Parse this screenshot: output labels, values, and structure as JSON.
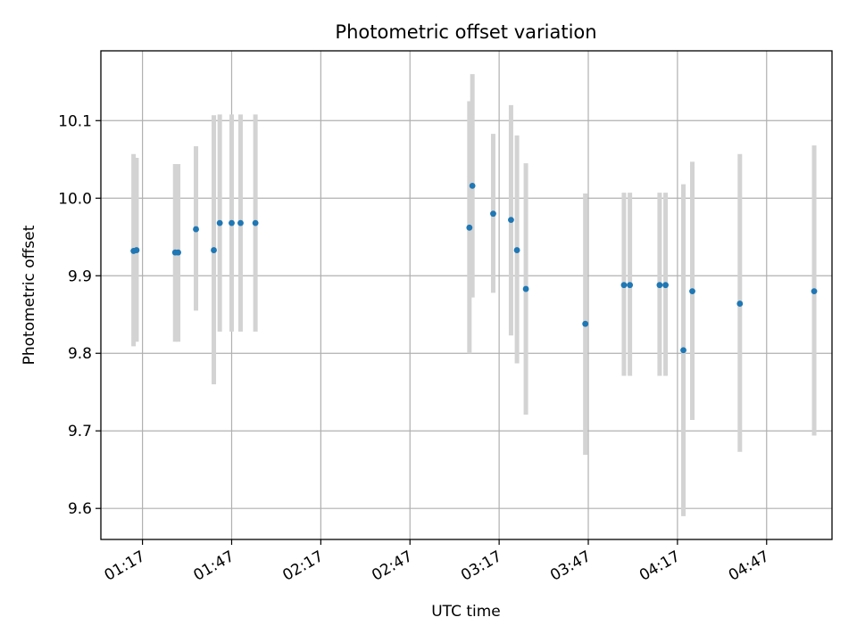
{
  "chart_data": {
    "type": "scatter",
    "title": "Photometric offset variation",
    "xlabel": "UTC time",
    "ylabel": "Photometric offset",
    "x_axis": {
      "kind": "time",
      "range": [
        "01:03",
        "05:09"
      ],
      "ticks": [
        "01:17",
        "01:47",
        "02:17",
        "02:47",
        "03:17",
        "03:47",
        "04:17",
        "04:47"
      ],
      "tick_label_rotation_deg": 30
    },
    "y_axis": {
      "range": [
        9.56,
        10.19
      ],
      "ticks": [
        "9.6",
        "9.7",
        "9.8",
        "9.9",
        "10.0",
        "10.1"
      ]
    },
    "grid": true,
    "colors": {
      "marker": "#1f77b4",
      "errorbar": "#d3d3d3",
      "grid": "#b0b0b0"
    },
    "points": [
      {
        "x": "01:14",
        "y": 9.932,
        "low": 9.809,
        "high": 10.057
      },
      {
        "x": "01:15",
        "y": 9.933,
        "low": 9.815,
        "high": 10.052
      },
      {
        "x": "01:28",
        "y": 9.93,
        "low": 9.815,
        "high": 10.044
      },
      {
        "x": "01:29",
        "y": 9.93,
        "low": 9.815,
        "high": 10.044
      },
      {
        "x": "01:35",
        "y": 9.96,
        "low": 9.855,
        "high": 10.067
      },
      {
        "x": "01:41",
        "y": 9.933,
        "low": 9.76,
        "high": 10.107
      },
      {
        "x": "01:43",
        "y": 9.968,
        "low": 9.828,
        "high": 10.108
      },
      {
        "x": "01:47",
        "y": 9.968,
        "low": 9.828,
        "high": 10.108
      },
      {
        "x": "01:50",
        "y": 9.968,
        "low": 9.828,
        "high": 10.108
      },
      {
        "x": "01:55",
        "y": 9.968,
        "low": 9.828,
        "high": 10.108
      },
      {
        "x": "03:07",
        "y": 9.962,
        "low": 9.8,
        "high": 10.125
      },
      {
        "x": "03:08",
        "y": 10.016,
        "low": 9.872,
        "high": 10.16
      },
      {
        "x": "03:15",
        "y": 9.98,
        "low": 9.878,
        "high": 10.083
      },
      {
        "x": "03:21",
        "y": 9.972,
        "low": 9.823,
        "high": 10.12
      },
      {
        "x": "03:23",
        "y": 9.933,
        "low": 9.787,
        "high": 10.081
      },
      {
        "x": "03:26",
        "y": 9.883,
        "low": 9.721,
        "high": 10.045
      },
      {
        "x": "03:46",
        "y": 9.838,
        "low": 9.669,
        "high": 10.006
      },
      {
        "x": "03:59",
        "y": 9.888,
        "low": 9.771,
        "high": 10.007
      },
      {
        "x": "04:01",
        "y": 9.888,
        "low": 9.771,
        "high": 10.007
      },
      {
        "x": "04:11",
        "y": 9.888,
        "low": 9.771,
        "high": 10.007
      },
      {
        "x": "04:13",
        "y": 9.888,
        "low": 9.771,
        "high": 10.007
      },
      {
        "x": "04:19",
        "y": 9.804,
        "low": 9.59,
        "high": 10.018
      },
      {
        "x": "04:22",
        "y": 9.88,
        "low": 9.714,
        "high": 10.047
      },
      {
        "x": "04:38",
        "y": 9.864,
        "low": 9.673,
        "high": 10.057
      },
      {
        "x": "05:03",
        "y": 9.88,
        "low": 9.694,
        "high": 10.068
      }
    ]
  }
}
